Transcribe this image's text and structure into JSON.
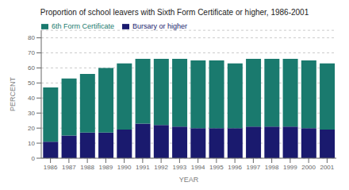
{
  "chart_data": {
    "type": "bar",
    "title": "Proportion of school leavers with Sixth Form Certificate or higher, 1986-2001",
    "xlabel": "YEAR",
    "ylabel": "PERCENT",
    "categories": [
      "1986",
      "1987",
      "1988",
      "1989",
      "1990",
      "1991",
      "1992",
      "1993",
      "1994",
      "1995",
      "1996",
      "1997",
      "1998",
      "1999",
      "2000",
      "2001"
    ],
    "series": [
      {
        "name": "Bursary or higher",
        "color": "#1a1a6e",
        "values": [
          11,
          15,
          17,
          17,
          19,
          23,
          22,
          21,
          20,
          20,
          20,
          21,
          21,
          21,
          20,
          19
        ]
      },
      {
        "name": "6th Form Certificate",
        "color": "#1a7a6e",
        "values": [
          36,
          38,
          39,
          43,
          44,
          43,
          44,
          45,
          45,
          45,
          43,
          45,
          45,
          45,
          45,
          44
        ]
      }
    ],
    "stacked": true,
    "ylim": [
      0,
      85
    ],
    "yticks": [
      0,
      10,
      20,
      30,
      40,
      50,
      60,
      70,
      80
    ],
    "grid": true,
    "legend": "upper left"
  }
}
